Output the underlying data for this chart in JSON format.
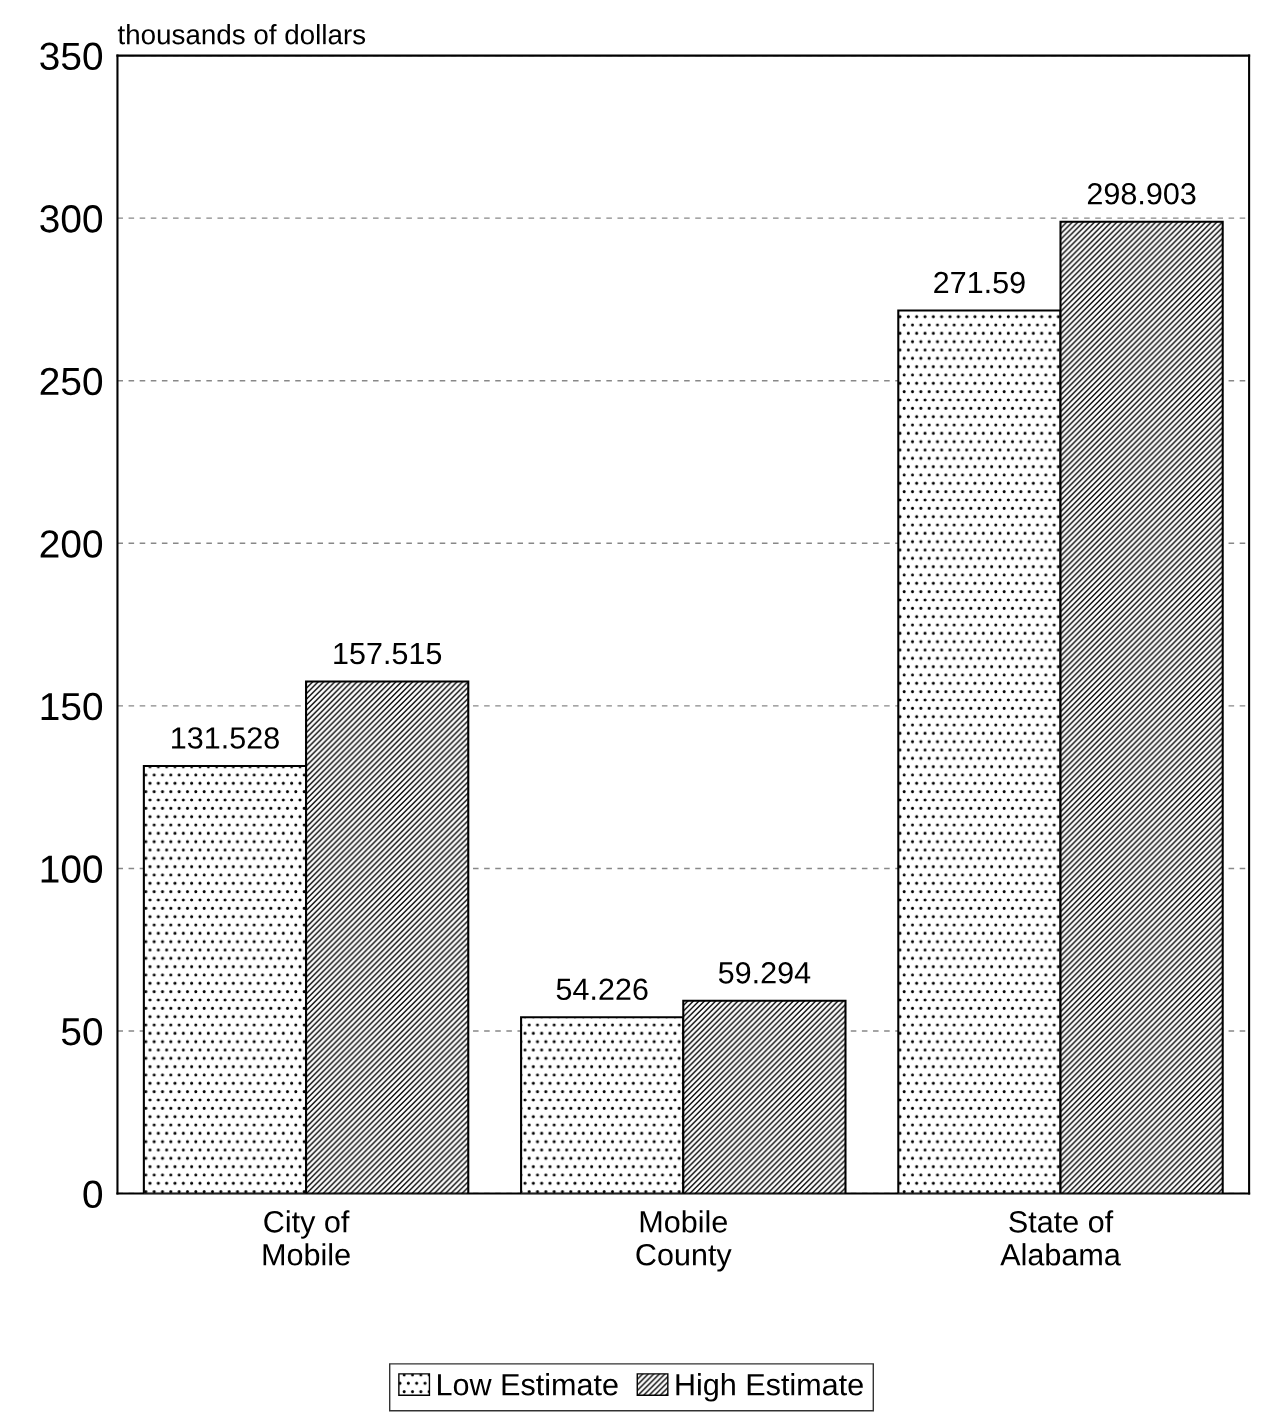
{
  "chart_data": {
    "type": "bar",
    "ylabel": "thousands of dollars",
    "categories": [
      "City of\nMobile",
      "Mobile\nCounty",
      "State of\nAlabama"
    ],
    "series": [
      {
        "name": "Low Estimate",
        "color": "#000000",
        "values": [
          131.528,
          54.226,
          271.59
        ]
      },
      {
        "name": "High Estimate",
        "color": "#000000",
        "values": [
          157.515,
          59.294,
          298.903
        ]
      }
    ],
    "ylim": [
      0,
      350
    ],
    "yticks": [
      0,
      50,
      100,
      150,
      200,
      250,
      300,
      350
    ],
    "grid": "y",
    "legend": "bottom",
    "data_labels": true
  }
}
